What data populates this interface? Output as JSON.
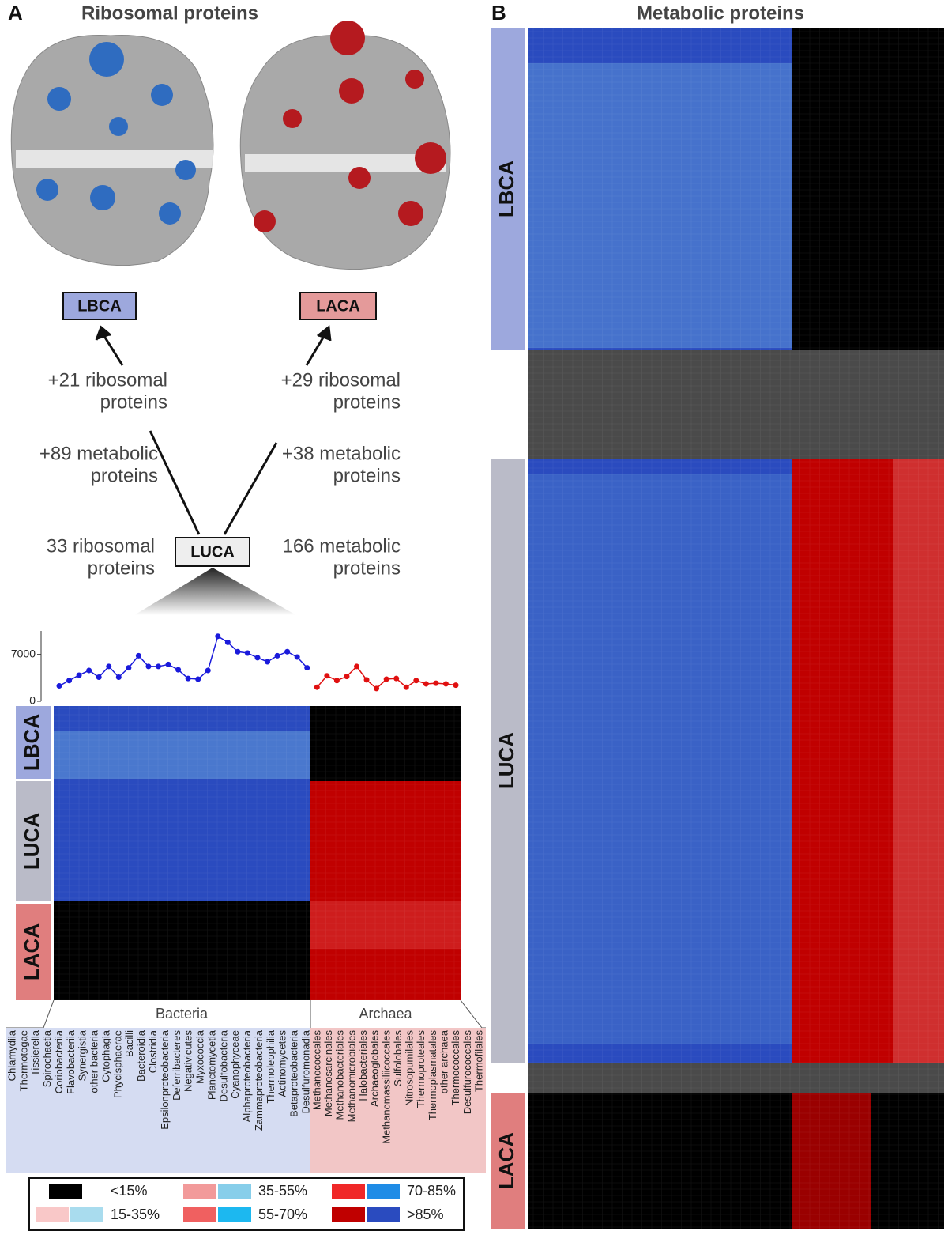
{
  "panel_a": {
    "label": "A",
    "title": "Ribosomal proteins",
    "tree": {
      "lbca": "LBCA",
      "laca": "LACA",
      "luca": "LUCA",
      "lbca_ribosomal": [
        "+21 ribosomal",
        "proteins"
      ],
      "lbca_metabolic": [
        "+89 metabolic",
        "proteins"
      ],
      "laca_ribosomal": [
        "+29 ribosomal",
        "proteins"
      ],
      "laca_metabolic": [
        "+38 metabolic",
        "proteins"
      ],
      "luca_ribosomal": [
        "33 ribosomal",
        "proteins"
      ],
      "luca_metabolic": [
        "166 metabolic",
        "proteins"
      ]
    },
    "heatmap_rows": [
      "LBCA",
      "LUCA",
      "LACA"
    ],
    "domains": [
      "Bacteria",
      "Archaea"
    ]
  },
  "panel_b": {
    "label": "B",
    "title": "Metabolic proteins",
    "heatmap_rows": [
      "LBCA",
      "LUCA",
      "LACA"
    ]
  },
  "legend": {
    "items": [
      {
        "label": "<15%",
        "colors": [
          "#000000"
        ]
      },
      {
        "label": "15-35%",
        "colors": [
          "#f9c8c8",
          "#a9dcee"
        ]
      },
      {
        "label": "35-55%",
        "colors": [
          "#f29a9a",
          "#87ceea"
        ]
      },
      {
        "label": "55-70%",
        "colors": [
          "#f06060",
          "#1cb8f0"
        ]
      },
      {
        "label": "70-85%",
        "colors": [
          "#f02828",
          "#1f8ce6"
        ]
      },
      {
        "label": ">85%",
        "colors": [
          "#c00000",
          "#2a4bbf"
        ]
      }
    ]
  },
  "chart_data": {
    "type": "line",
    "categories": [
      "Chlamydiia",
      "Thermotogae",
      "Tissierella",
      "Spirochaetia",
      "Coriobacteriia",
      "Flavobacteriia",
      "Synergistia",
      "other bacteria",
      "Cytophagia",
      "Phycisphaerae",
      "Bacilli",
      "Bacteroidia",
      "Clostridia",
      "Epsilonproteobacteria",
      "Deferribacteres",
      "Negativicutes",
      "Myxococcia",
      "Planctomycetia",
      "Desulfobacteria",
      "Cyanophyceae",
      "Alphaproteobacteria",
      "Zammaproteobacteria",
      "Thermoleophilia",
      "Actinomycetes",
      "Betaproteobacteria",
      "Desulfuromonadia",
      "Methanococcales",
      "Methanosarcinales",
      "Methanobacteriales",
      "Methanomicrobiales",
      "Halobacteriales",
      "Archaeoglobales",
      "Methanomassiliicoccales",
      "Sulfolobales",
      "Nitrosopumilales",
      "Thermoproteales",
      "Thermoplasmatales",
      "other archaea",
      "Thermococcales",
      "Desulfurococcales",
      "Thermofilales"
    ],
    "series": [
      {
        "color": "#1a1adb",
        "values": [
          2300,
          3100,
          3900,
          4600,
          3600,
          5200,
          3600,
          5000,
          6800,
          5200,
          5200,
          5500,
          4700,
          3400,
          3300,
          4600,
          9700,
          8800,
          7400,
          7200,
          6500,
          5900,
          6800,
          7400,
          6600,
          5000,
          null,
          null,
          null,
          null,
          null,
          null,
          null,
          null,
          null,
          null,
          null,
          null,
          null,
          null,
          null
        ]
      },
      {
        "color": "#e01010",
        "values": [
          null,
          null,
          null,
          null,
          null,
          null,
          null,
          null,
          null,
          null,
          null,
          null,
          null,
          null,
          null,
          null,
          null,
          null,
          null,
          null,
          null,
          null,
          null,
          null,
          null,
          null,
          2100,
          3800,
          3100,
          3700,
          5200,
          3200,
          1900,
          3300,
          3400,
          2100,
          3100,
          2600,
          2700,
          2600,
          2400
        ]
      }
    ],
    "ylim": [
      0,
      10500
    ],
    "yticks": [
      0,
      7000
    ]
  }
}
